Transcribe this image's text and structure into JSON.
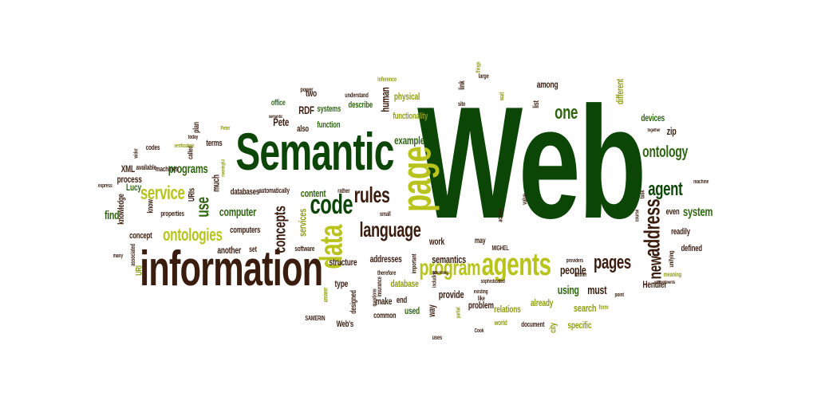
{
  "palette": {
    "darkgreen": "#0c4607",
    "green": "#2f6511",
    "olive": "#8e9b12",
    "lime": "#b8c31b",
    "brown": "#3a1d0f",
    "tan": "#8a6a2a"
  },
  "words": [
    {
      "text": "Web",
      "color": "darkgreen"
    },
    {
      "text": "Semantic",
      "color": "darkgreen"
    },
    {
      "text": "information",
      "color": "brown"
    },
    {
      "text": "agents",
      "color": "lime"
    },
    {
      "text": "page",
      "color": "lime"
    },
    {
      "text": "data",
      "color": "lime"
    },
    {
      "text": "code",
      "color": "darkgreen"
    },
    {
      "text": "language",
      "color": "brown"
    },
    {
      "text": "rules",
      "color": "brown"
    },
    {
      "text": "program",
      "color": "lime"
    },
    {
      "text": "ontologies",
      "color": "lime"
    },
    {
      "text": "service",
      "color": "lime"
    },
    {
      "text": "pages",
      "color": "brown"
    },
    {
      "text": "address",
      "color": "brown"
    },
    {
      "text": "agent",
      "color": "darkgreen"
    },
    {
      "text": "ontology",
      "color": "green"
    },
    {
      "text": "one",
      "color": "green"
    },
    {
      "text": "new",
      "color": "brown"
    },
    {
      "text": "system",
      "color": "green"
    },
    {
      "text": "example",
      "color": "green"
    },
    {
      "text": "programs",
      "color": "green"
    },
    {
      "text": "concepts",
      "color": "brown"
    },
    {
      "text": "use",
      "color": "green"
    },
    {
      "text": "computer",
      "color": "green"
    },
    {
      "text": "content",
      "color": "green"
    },
    {
      "text": "services",
      "color": "olive"
    },
    {
      "text": "Pete",
      "color": "brown"
    },
    {
      "text": "RDF",
      "color": "brown"
    },
    {
      "text": "human",
      "color": "brown"
    },
    {
      "text": "physical",
      "color": "olive"
    },
    {
      "text": "functionality",
      "color": "olive"
    },
    {
      "text": "devices",
      "color": "green"
    },
    {
      "text": "different",
      "color": "olive"
    },
    {
      "text": "among",
      "color": "brown"
    },
    {
      "text": "find",
      "color": "green"
    },
    {
      "text": "Lucy",
      "color": "green"
    },
    {
      "text": "process",
      "color": "brown"
    },
    {
      "text": "XML",
      "color": "brown"
    },
    {
      "text": "URIs",
      "color": "brown"
    },
    {
      "text": "much",
      "color": "brown"
    },
    {
      "text": "terms",
      "color": "brown"
    },
    {
      "text": "systems",
      "color": "green"
    },
    {
      "text": "function",
      "color": "green"
    },
    {
      "text": "describe",
      "color": "green"
    },
    {
      "text": "also",
      "color": "brown"
    },
    {
      "text": "two",
      "color": "brown"
    },
    {
      "text": "office",
      "color": "green"
    },
    {
      "text": "people",
      "color": "brown"
    },
    {
      "text": "using",
      "color": "green"
    },
    {
      "text": "must",
      "color": "brown"
    },
    {
      "text": "Hendler",
      "color": "brown"
    },
    {
      "text": "search",
      "color": "olive"
    },
    {
      "text": "already",
      "color": "olive"
    },
    {
      "text": "specific",
      "color": "olive"
    },
    {
      "text": "relations",
      "color": "olive"
    },
    {
      "text": "problem",
      "color": "brown"
    },
    {
      "text": "provide",
      "color": "brown"
    },
    {
      "text": "semantics",
      "color": "brown"
    },
    {
      "text": "work",
      "color": "brown"
    },
    {
      "text": "may",
      "color": "brown"
    },
    {
      "text": "database",
      "color": "olive"
    },
    {
      "text": "addresses",
      "color": "brown"
    },
    {
      "text": "structure",
      "color": "brown"
    },
    {
      "text": "make",
      "color": "brown"
    },
    {
      "text": "end",
      "color": "brown"
    },
    {
      "text": "used",
      "color": "green"
    },
    {
      "text": "way",
      "color": "brown"
    },
    {
      "text": "common",
      "color": "brown"
    },
    {
      "text": "type",
      "color": "brown"
    },
    {
      "text": "computers",
      "color": "brown"
    },
    {
      "text": "another",
      "color": "brown"
    },
    {
      "text": "set",
      "color": "brown"
    },
    {
      "text": "databases",
      "color": "brown"
    },
    {
      "text": "software",
      "color": "brown"
    },
    {
      "text": "concept",
      "color": "brown"
    },
    {
      "text": "knowledge",
      "color": "brown"
    },
    {
      "text": "readily",
      "color": "brown"
    },
    {
      "text": "defined",
      "color": "brown"
    },
    {
      "text": "even",
      "color": "brown"
    },
    {
      "text": "zip",
      "color": "brown"
    },
    {
      "text": "city",
      "color": "olive"
    },
    {
      "text": "link",
      "color": "brown"
    },
    {
      "text": "list",
      "color": "brown"
    },
    {
      "text": "Web's",
      "color": "brown"
    },
    {
      "text": "URI",
      "color": "olive"
    },
    {
      "text": "codes",
      "color": "brown"
    },
    {
      "text": "called",
      "color": "brown"
    },
    {
      "text": "plan",
      "color": "brown"
    },
    {
      "text": "know",
      "color": "brown"
    },
    {
      "text": "properties",
      "color": "brown"
    },
    {
      "text": "available",
      "color": "brown"
    },
    {
      "text": "machines",
      "color": "brown"
    },
    {
      "text": "automatically",
      "color": "brown"
    },
    {
      "text": "rather",
      "color": "brown"
    },
    {
      "text": "small",
      "color": "brown"
    },
    {
      "text": "important",
      "color": "brown"
    },
    {
      "text": "understand",
      "color": "brown"
    },
    {
      "text": "power",
      "color": "brown"
    },
    {
      "text": "inference",
      "color": "olive"
    },
    {
      "text": "like",
      "color": "brown"
    },
    {
      "text": "large",
      "color": "brown"
    },
    {
      "text": "things",
      "color": "olive"
    },
    {
      "text": "across",
      "color": "brown"
    },
    {
      "text": "MIGHEL",
      "color": "brown"
    },
    {
      "text": "site",
      "color": "brown"
    },
    {
      "text": "wait",
      "color": "olive"
    },
    {
      "text": "uses",
      "color": "brown"
    },
    {
      "text": "world",
      "color": "olive"
    },
    {
      "text": "document",
      "color": "brown"
    },
    {
      "text": "existing",
      "color": "brown"
    },
    {
      "text": "form",
      "color": "olive"
    },
    {
      "text": "task",
      "color": "brown"
    },
    {
      "text": "course",
      "color": "brown"
    },
    {
      "text": "value",
      "color": "brown"
    },
    {
      "text": "meaning",
      "color": "olive"
    },
    {
      "text": "unifying",
      "color": "brown"
    },
    {
      "text": "together",
      "color": "brown"
    },
    {
      "text": "appointments",
      "color": "brown"
    },
    {
      "text": "therefore",
      "color": "brown"
    },
    {
      "text": "insurance",
      "color": "brown"
    },
    {
      "text": "questions",
      "color": "brown"
    },
    {
      "text": "designed",
      "color": "brown"
    },
    {
      "text": "answer",
      "color": "olive"
    },
    {
      "text": "SAMERIN",
      "color": "brown"
    },
    {
      "text": "Cook",
      "color": "brown"
    },
    {
      "text": "partial",
      "color": "olive"
    },
    {
      "text": "associated",
      "color": "brown"
    },
    {
      "text": "express",
      "color": "brown"
    },
    {
      "text": "wider",
      "color": "brown"
    },
    {
      "text": "today",
      "color": "brown"
    },
    {
      "text": "semantic",
      "color": "brown"
    },
    {
      "text": "Peter",
      "color": "olive"
    },
    {
      "text": "verification",
      "color": "olive"
    },
    {
      "text": "meaningful",
      "color": "olive"
    },
    {
      "text": "describing",
      "color": "brown"
    },
    {
      "text": "sophisticated",
      "color": "brown"
    },
    {
      "text": "including",
      "color": "brown"
    },
    {
      "text": "point",
      "color": "brown"
    },
    {
      "text": "providers",
      "color": "brown"
    },
    {
      "text": "further",
      "color": "brown"
    },
    {
      "text": "machine",
      "color": "brown"
    },
    {
      "text": "many",
      "color": "brown"
    },
    {
      "text": "just",
      "color": "brown"
    }
  ]
}
